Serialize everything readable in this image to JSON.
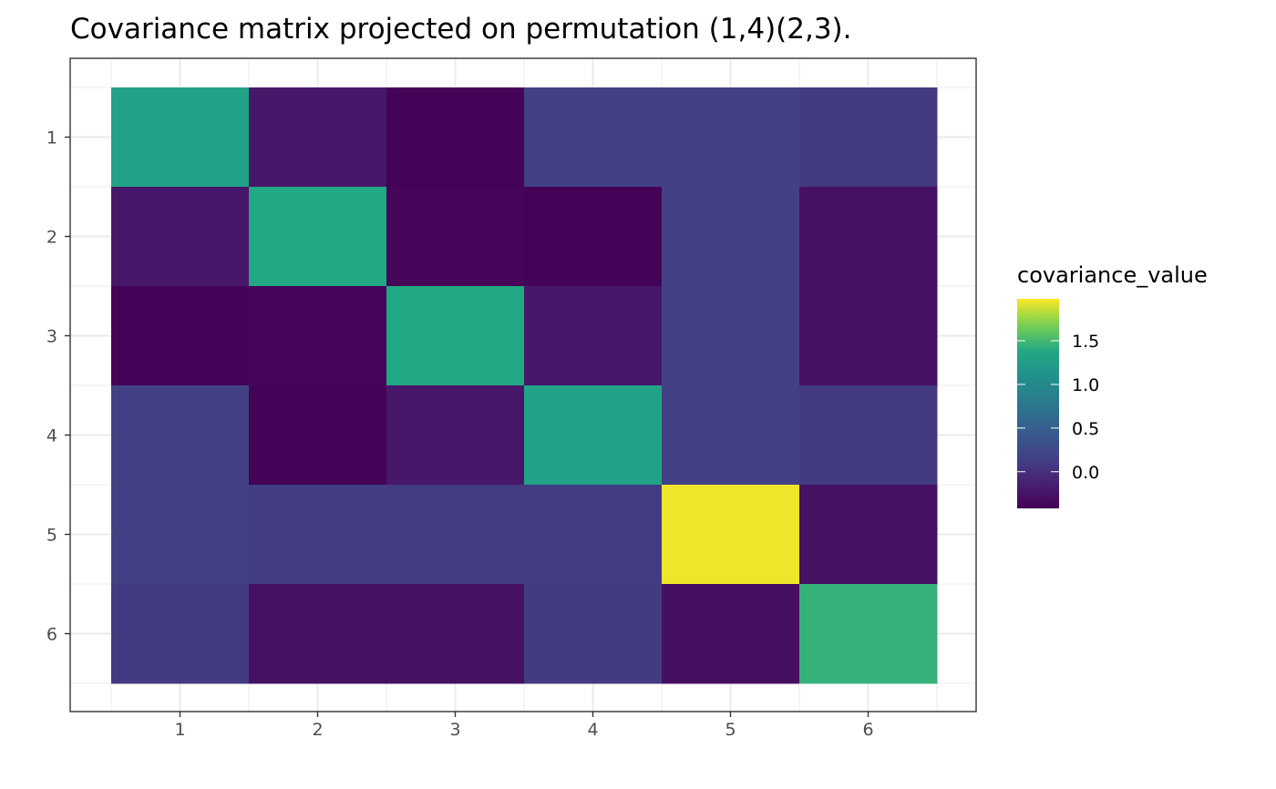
{
  "chart_data": {
    "type": "heatmap",
    "title": "Covariance matrix projected on permutation (1,4)(2,3).",
    "xlabel": "",
    "ylabel": "",
    "x_categories": [
      "1",
      "2",
      "3",
      "4",
      "5",
      "6"
    ],
    "y_categories": [
      "1",
      "2",
      "3",
      "4",
      "5",
      "6"
    ],
    "values": [
      [
        1.3,
        -0.22,
        -0.4,
        0.15,
        0.15,
        0.1
      ],
      [
        -0.22,
        1.38,
        -0.38,
        -0.4,
        0.15,
        -0.28
      ],
      [
        -0.4,
        -0.38,
        1.38,
        -0.22,
        0.15,
        -0.28
      ],
      [
        0.15,
        -0.4,
        -0.22,
        1.3,
        0.15,
        0.1
      ],
      [
        0.15,
        0.12,
        0.12,
        0.12,
        1.95,
        -0.28
      ],
      [
        0.1,
        -0.28,
        -0.28,
        0.1,
        -0.3,
        1.45
      ]
    ],
    "color_scale": "viridis",
    "legend": {
      "title": "covariance_value",
      "position": "right",
      "range": [
        -0.42,
        1.98
      ],
      "ticks": [
        1.5,
        1.0,
        0.5,
        0.0
      ],
      "tick_labels": [
        "1.5",
        "1.0",
        "0.5",
        "0.0"
      ]
    },
    "grid": true,
    "theme": "bw"
  }
}
